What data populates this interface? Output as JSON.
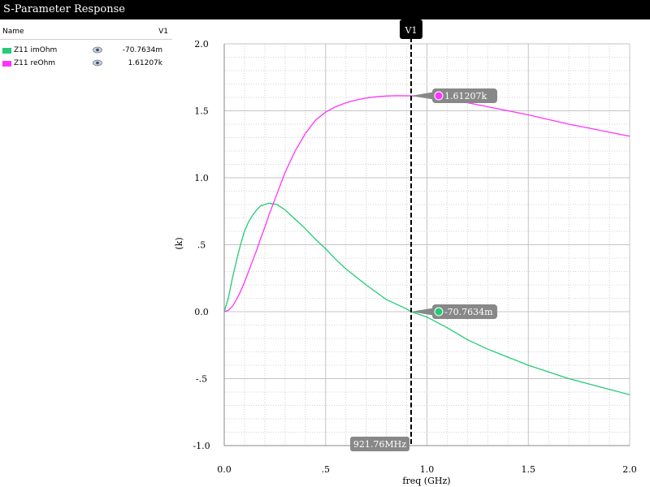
{
  "window": {
    "title": "S-Parameter Response"
  },
  "legend": {
    "header_name": "Name",
    "header_column": "V1",
    "rows": [
      {
        "name": "Z11 imOhm",
        "value": "-70.7634m",
        "color": "#22cc77"
      },
      {
        "name": "Z11 reOhm",
        "value": "1.61207k",
        "color": "#ff33ff"
      }
    ],
    "eye_icon": "eye-icon"
  },
  "chart_data": {
    "type": "line",
    "xlabel": "freq (GHz)",
    "ylabel": "(k)",
    "xlim": [
      0,
      2
    ],
    "ylim": [
      -1,
      2
    ],
    "x_ticks": [
      0,
      0.5,
      1,
      1.5,
      2
    ],
    "x_tick_labels": [
      "0.0",
      ".5",
      "1.0",
      "1.5",
      "2.0"
    ],
    "y_ticks": [
      -1,
      -0.5,
      0,
      0.5,
      1,
      1.5,
      2
    ],
    "y_tick_labels": [
      "-1.0",
      "-.5",
      "0.0",
      ".5",
      "1.0",
      "1.5",
      "2.0"
    ],
    "grid": true,
    "series": [
      {
        "name": "Z11 imOhm",
        "color": "#22cc77",
        "x": [
          0,
          0.02,
          0.04,
          0.06,
          0.08,
          0.1,
          0.12,
          0.14,
          0.16,
          0.18,
          0.2,
          0.22,
          0.24,
          0.26,
          0.28,
          0.3,
          0.35,
          0.4,
          0.45,
          0.5,
          0.55,
          0.6,
          0.7,
          0.8,
          0.9,
          0.92176,
          1.0,
          1.1,
          1.2,
          1.3,
          1.4,
          1.5,
          1.6,
          1.7,
          1.8,
          1.9,
          2.0
        ],
        "y": [
          0,
          0.1,
          0.25,
          0.38,
          0.5,
          0.6,
          0.67,
          0.72,
          0.76,
          0.79,
          0.8,
          0.81,
          0.805,
          0.8,
          0.78,
          0.76,
          0.69,
          0.62,
          0.54,
          0.47,
          0.39,
          0.32,
          0.2,
          0.09,
          0.02,
          0.0,
          -0.04,
          -0.12,
          -0.21,
          -0.28,
          -0.34,
          -0.4,
          -0.45,
          -0.5,
          -0.54,
          -0.58,
          -0.62
        ]
      },
      {
        "name": "Z11 reOhm",
        "color": "#ff33ff",
        "x": [
          0,
          0.02,
          0.04,
          0.06,
          0.08,
          0.1,
          0.12,
          0.14,
          0.16,
          0.18,
          0.2,
          0.22,
          0.24,
          0.26,
          0.28,
          0.3,
          0.35,
          0.4,
          0.45,
          0.5,
          0.55,
          0.6,
          0.65,
          0.7,
          0.75,
          0.8,
          0.85,
          0.92176,
          1.0,
          1.1,
          1.2,
          1.3,
          1.4,
          1.5,
          1.6,
          1.7,
          1.8,
          1.9,
          2.0
        ],
        "y": [
          0,
          0.01,
          0.04,
          0.09,
          0.15,
          0.22,
          0.3,
          0.38,
          0.46,
          0.55,
          0.63,
          0.72,
          0.8,
          0.88,
          0.96,
          1.04,
          1.2,
          1.33,
          1.43,
          1.49,
          1.53,
          1.56,
          1.58,
          1.595,
          1.605,
          1.61,
          1.613,
          1.612,
          1.605,
          1.585,
          1.56,
          1.53,
          1.5,
          1.47,
          1.435,
          1.4,
          1.37,
          1.34,
          1.31
        ]
      }
    ],
    "cursor": {
      "label": "V1",
      "x": 0.92176,
      "x_readout": "921.76MHz"
    },
    "annotations": [
      {
        "series": "Z11 reOhm",
        "x": 0.92176,
        "y": 1.61207,
        "text": "1.61207k",
        "color": "#ff33ff"
      },
      {
        "series": "Z11 imOhm",
        "x": 0.92176,
        "y": -7.07634e-05,
        "text": "-70.7634m",
        "color": "#22cc77"
      }
    ]
  }
}
